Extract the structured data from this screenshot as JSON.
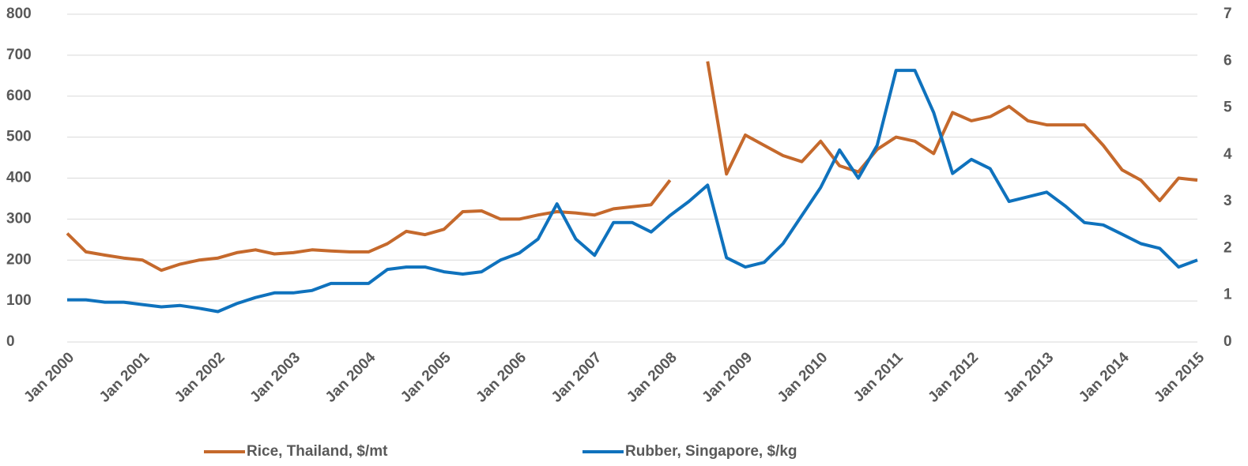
{
  "chart_data": {
    "type": "line",
    "categories": [
      "Jan 2000",
      null,
      null,
      null,
      "Jan 2001",
      null,
      null,
      null,
      "Jan 2002",
      null,
      null,
      null,
      "Jan 2003",
      null,
      null,
      null,
      "Jan 2004",
      null,
      null,
      null,
      "Jan 2005",
      null,
      null,
      null,
      "Jan 2006",
      null,
      null,
      null,
      "Jan 2007",
      null,
      null,
      null,
      "Jan 2008",
      null,
      null,
      null,
      "Jan 2009",
      null,
      null,
      null,
      "Jan 2010",
      null,
      null,
      null,
      "Jan 2011",
      null,
      null,
      null,
      "Jan 2012",
      null,
      null,
      null,
      "Jan 2013",
      null,
      null,
      null,
      "Jan 2014",
      null,
      null,
      null,
      "Jan 2015"
    ],
    "series": [
      {
        "name": "Rice, Thailand, $/mt",
        "color": "#c5692c",
        "axis": "y",
        "values": [
          265,
          220,
          212,
          205,
          200,
          175,
          190,
          200,
          205,
          218,
          225,
          215,
          218,
          225,
          222,
          220,
          220,
          240,
          270,
          262,
          275,
          318,
          320,
          300,
          300,
          310,
          318,
          315,
          310,
          325,
          330,
          335,
          395,
          null,
          685,
          410,
          505,
          480,
          455,
          440,
          490,
          430,
          415,
          470,
          500,
          490,
          460,
          560,
          540,
          550,
          575,
          540,
          530,
          530,
          530,
          480,
          420,
          395,
          345,
          400,
          395
        ]
      },
      {
        "name": "Rubber, Singapore, $/kg",
        "color": "#0f72bd",
        "axis": "y2",
        "values": [
          0.9,
          0.9,
          0.85,
          0.85,
          0.8,
          0.75,
          0.78,
          0.72,
          0.65,
          0.82,
          0.95,
          1.05,
          1.05,
          1.1,
          1.25,
          1.25,
          1.25,
          1.55,
          1.6,
          1.6,
          1.5,
          1.45,
          1.5,
          1.75,
          1.9,
          2.2,
          2.95,
          2.2,
          1.85,
          2.55,
          2.55,
          2.35,
          2.7,
          3.0,
          3.35,
          1.8,
          1.6,
          1.7,
          2.1,
          2.7,
          3.3,
          4.1,
          3.5,
          4.2,
          5.8,
          5.8,
          4.9,
          3.6,
          3.9,
          3.7,
          3.0,
          3.1,
          3.2,
          2.9,
          2.55,
          2.5,
          2.3,
          2.1,
          2.0,
          1.6,
          1.75
        ]
      }
    ],
    "ylim": [
      0,
      800
    ],
    "yticks": [
      0,
      100,
      200,
      300,
      400,
      500,
      600,
      700,
      800
    ],
    "y2lim": [
      0,
      7
    ],
    "y2ticks": [
      0,
      1,
      2,
      3,
      4,
      5,
      6,
      7
    ],
    "grid": true,
    "legend": "bottom"
  }
}
